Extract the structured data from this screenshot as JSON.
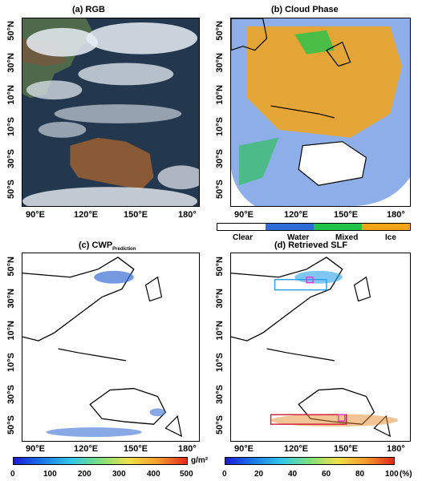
{
  "panels": {
    "a": {
      "title": "(a) RGB"
    },
    "b": {
      "title": "(b) Cloud Phase"
    },
    "c": {
      "title_main": "(c) CWP",
      "title_sub": "Prediction"
    },
    "d": {
      "title": "(d) Retrieved SLF"
    }
  },
  "lat_labels": [
    "50°N",
    "30°N",
    "10°N",
    "10°S",
    "30°S",
    "50°S"
  ],
  "lon_labels": [
    "90°E",
    "120°E",
    "150°E",
    "180°"
  ],
  "phase_legend": {
    "categories": [
      "Clear",
      "Water",
      "Mixed",
      "Ice"
    ],
    "colors": [
      "#ffffff",
      "#2f6bd6",
      "#22c34a",
      "#f2a516"
    ]
  },
  "cwp_colorbar": {
    "ticks": [
      "0",
      "100",
      "200",
      "300",
      "400",
      "500"
    ],
    "unit": "g/m²"
  },
  "slf_colorbar": {
    "ticks": [
      "0",
      "20",
      "40",
      "60",
      "80",
      "100"
    ],
    "unit": "(%)"
  },
  "colors": {
    "ocean_rgb": "#1f3550",
    "land_rgb": "#8a5a36",
    "cloud": "#e8edf3",
    "box_blue": "#2aa0e8",
    "box_red": "#d0253b",
    "box_magenta": "#e23bd6"
  }
}
